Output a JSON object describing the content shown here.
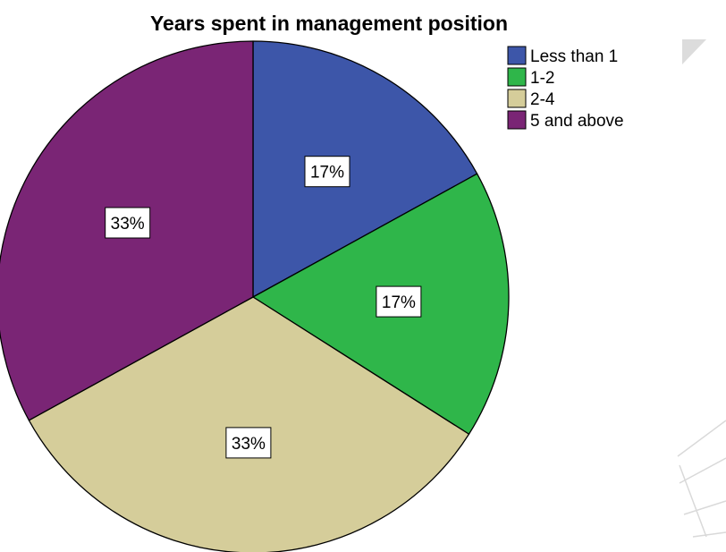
{
  "chart_data": {
    "type": "pie",
    "title": "Years spent in management position",
    "categories": [
      "Less than 1",
      "1-2",
      "2-4",
      "5 and above"
    ],
    "values": [
      17,
      17,
      33,
      33
    ],
    "data_labels": [
      "17%",
      "17%",
      "33%",
      "33%"
    ],
    "colors": [
      "#3d56a9",
      "#2fb64a",
      "#d5cd9a",
      "#7a2575"
    ],
    "legend_placement": "top-right",
    "start_angle_deg": 0,
    "direction": "clockwise"
  }
}
